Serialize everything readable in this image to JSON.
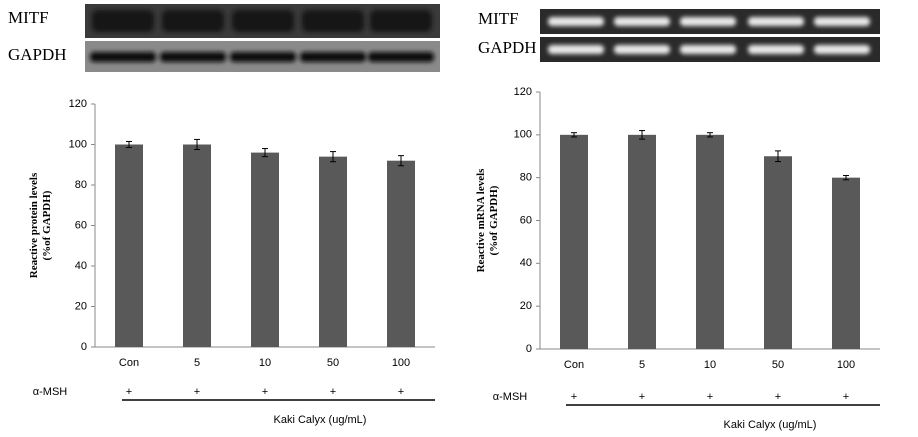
{
  "chart_data": [
    {
      "type": "bar",
      "blot_labels": [
        "MITF",
        "GAPDH"
      ],
      "ylabel": [
        "Reactive protein levels",
        "(%of GAPDH)"
      ],
      "categories": [
        "Con",
        "5",
        "10",
        "50",
        "100"
      ],
      "values": [
        100,
        100,
        96,
        94,
        92
      ],
      "errors": [
        1.5,
        2.5,
        2,
        2.5,
        2.5
      ],
      "color": "#595959",
      "ylim": [
        0,
        120
      ],
      "yticks": [
        0,
        20,
        40,
        60,
        80,
        100,
        120
      ],
      "treatment_label": "α-MSH",
      "treatment_marks": [
        "+",
        "+",
        "+",
        "+",
        "+"
      ],
      "xlabel": "Kaki Calyx (ug/mL)"
    },
    {
      "type": "bar",
      "blot_labels": [
        "MITF",
        "GAPDH"
      ],
      "ylabel": [
        "Reactive mRNA levels",
        "(%of GAPDH)"
      ],
      "categories": [
        "Con",
        "5",
        "10",
        "50",
        "100"
      ],
      "values": [
        100,
        100,
        100,
        90,
        80
      ],
      "errors": [
        1,
        2,
        1,
        2.5,
        1
      ],
      "color": "#595959",
      "ylim": [
        0,
        120
      ],
      "yticks": [
        0,
        20,
        40,
        60,
        80,
        100,
        120
      ],
      "treatment_label": "α-MSH",
      "treatment_marks": [
        "+",
        "+",
        "+",
        "+",
        "+"
      ],
      "xlabel": "Kaki Calyx (ug/mL)"
    }
  ]
}
